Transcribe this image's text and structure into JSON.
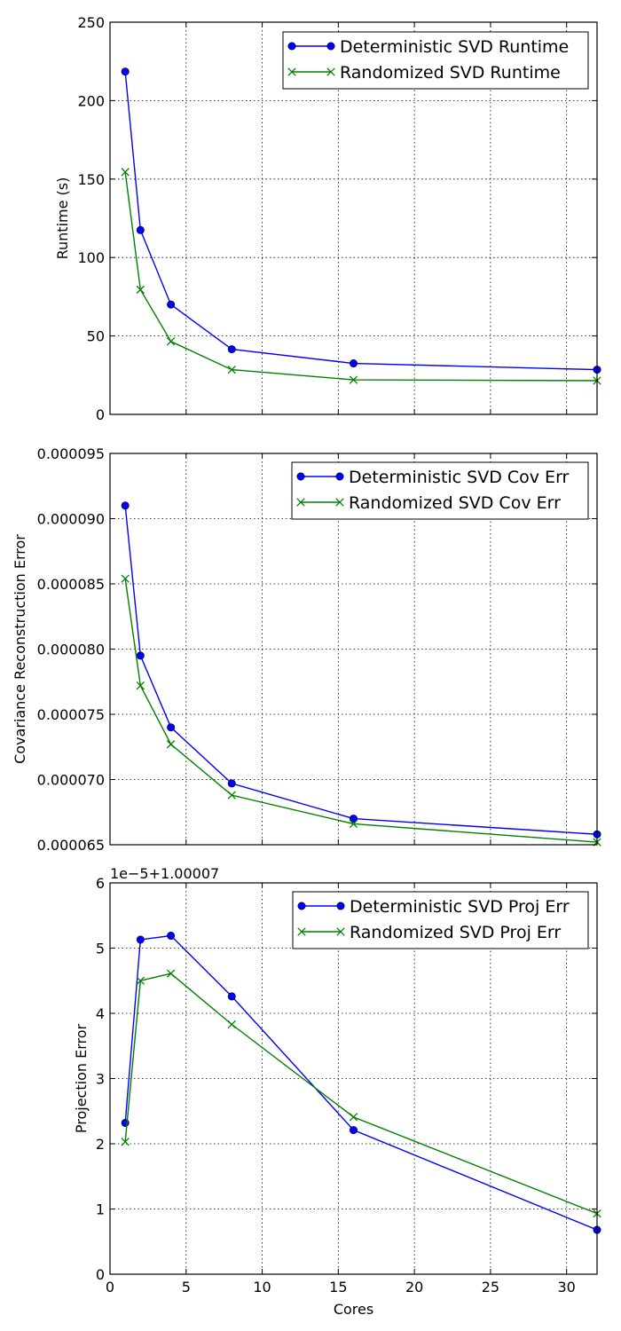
{
  "chart_data": [
    {
      "type": "line",
      "title": "",
      "xlabel": "",
      "ylabel": "Runtime (s)",
      "xlim": [
        0,
        32
      ],
      "ylim": [
        0,
        250
      ],
      "yticks": [
        "0",
        "50",
        "100",
        "150",
        "200",
        "250"
      ],
      "grid": true,
      "legend_position": "top-right",
      "series": [
        {
          "name": "Deterministic SVD Runtime",
          "color": "#0000ff",
          "marker": "circle",
          "x": [
            1,
            2,
            4,
            8,
            16,
            32
          ],
          "y": [
            218.5,
            117.5,
            70.0,
            41.5,
            32.5,
            28.5
          ]
        },
        {
          "name": "Randomized SVD Runtime",
          "color": "#008000",
          "marker": "x",
          "x": [
            1,
            2,
            4,
            8,
            16,
            32
          ],
          "y": [
            154.5,
            79.5,
            46.5,
            28.5,
            22.0,
            21.5
          ]
        }
      ]
    },
    {
      "type": "line",
      "title": "",
      "xlabel": "",
      "ylabel": "Covariance Reconstruction Error",
      "xlim": [
        0,
        32
      ],
      "ylim": [
        6.5e-05,
        9.5e-05
      ],
      "yticks": [
        "0.000065",
        "0.000070",
        "0.000075",
        "0.000080",
        "0.000085",
        "0.000090",
        "0.000095"
      ],
      "grid": true,
      "legend_position": "top-right",
      "series": [
        {
          "name": "Deterministic SVD Cov Err",
          "color": "#0000ff",
          "marker": "circle",
          "x": [
            1,
            2,
            4,
            8,
            16,
            32
          ],
          "y": [
            9.1e-05,
            7.95e-05,
            7.4e-05,
            6.97e-05,
            6.7e-05,
            6.58e-05
          ]
        },
        {
          "name": "Randomized SVD Cov Err",
          "color": "#008000",
          "marker": "x",
          "x": [
            1,
            2,
            4,
            8,
            16,
            32
          ],
          "y": [
            8.54e-05,
            7.72e-05,
            7.27e-05,
            6.88e-05,
            6.66e-05,
            6.52e-05
          ]
        }
      ]
    },
    {
      "type": "line",
      "title": "",
      "xlabel": "Cores",
      "ylabel": "Projection Error",
      "offset_text": "1e−5+1.00007",
      "xlim": [
        0,
        32
      ],
      "xticks": [
        "0",
        "5",
        "10",
        "15",
        "20",
        "25",
        "30"
      ],
      "ylim": [
        0,
        6
      ],
      "yticks": [
        "0",
        "1",
        "2",
        "3",
        "4",
        "5",
        "6"
      ],
      "grid": true,
      "legend_position": "top-right",
      "series": [
        {
          "name": "Deterministic SVD Proj Err",
          "color": "#0000ff",
          "marker": "circle",
          "x": [
            1,
            2,
            4,
            8,
            16,
            32
          ],
          "y": [
            2.32,
            5.13,
            5.19,
            4.26,
            2.21,
            0.68
          ]
        },
        {
          "name": "Randomized SVD Proj Err",
          "color": "#008000",
          "marker": "x",
          "x": [
            1,
            2,
            4,
            8,
            16,
            32
          ],
          "y": [
            2.03,
            4.5,
            4.61,
            3.83,
            2.41,
            0.93
          ]
        }
      ]
    }
  ]
}
